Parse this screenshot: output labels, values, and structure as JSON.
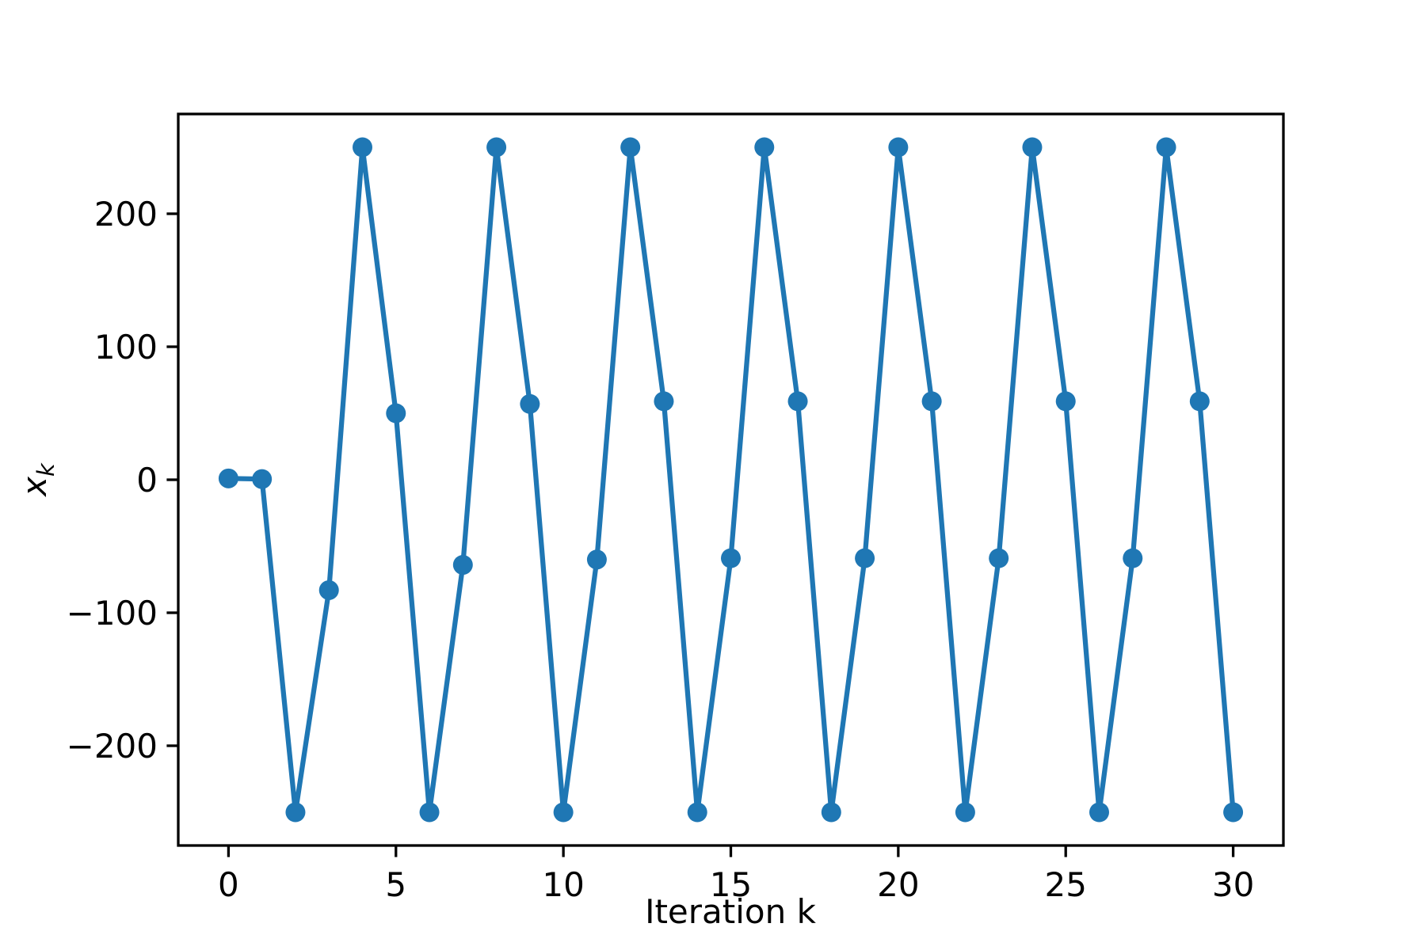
{
  "chart_data": {
    "type": "line",
    "xlabel": "Iteration k",
    "ylabel": "x",
    "ylabel_subscript": "k",
    "x": [
      0,
      1,
      2,
      3,
      4,
      5,
      6,
      7,
      8,
      9,
      10,
      11,
      12,
      13,
      14,
      15,
      16,
      17,
      18,
      19,
      20,
      21,
      22,
      23,
      24,
      25,
      26,
      27,
      28,
      29,
      30
    ],
    "series": [
      {
        "color": "#1f77b4",
        "values": [
          1,
          0.5,
          -250,
          -83,
          250,
          50,
          -250,
          -64,
          250,
          57,
          -250,
          -60,
          250,
          59,
          -250,
          -59,
          250,
          59,
          -250,
          -59,
          250,
          59,
          -250,
          -59,
          250,
          59,
          -250,
          -59,
          250,
          59,
          -250
        ]
      }
    ],
    "markers": true,
    "xlim": [
      -1.5,
      31.5
    ],
    "xticks": [
      0,
      5,
      10,
      15,
      20,
      25,
      30
    ],
    "ylim": [
      -275,
      275
    ],
    "yticks": [
      {
        "value": -200,
        "label": "−200"
      },
      {
        "value": -100,
        "label": "−100"
      },
      0,
      100,
      200
    ],
    "grid": false
  }
}
